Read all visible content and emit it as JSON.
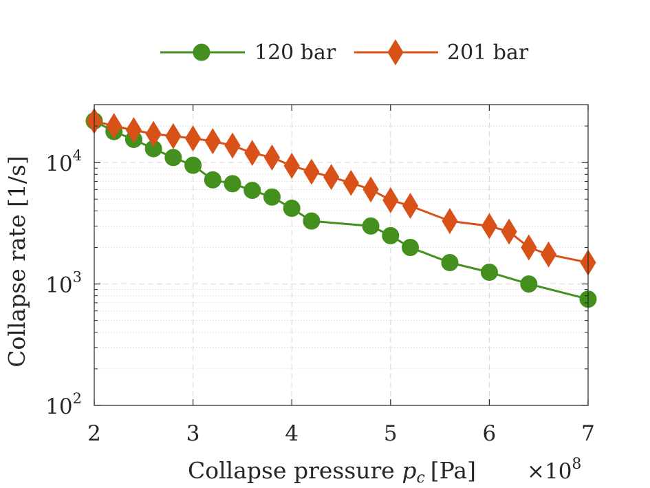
{
  "chart_data": {
    "type": "line",
    "title": "",
    "xlabel": "Collapse pressure",
    "xlabel_symbol": "p",
    "xlabel_subscript": "c",
    "xlabel_unit": "[Pa]",
    "x_multiplier_base": "×10",
    "x_multiplier_exp": "8",
    "ylabel": "Collapse rate  [1/s]",
    "yscale": "log",
    "xlim": [
      2,
      7
    ],
    "ylim": [
      100,
      30000
    ],
    "xticks": [
      2,
      3,
      4,
      5,
      6,
      7
    ],
    "xtick_labels": [
      "2",
      "3",
      "4",
      "5",
      "6",
      "7"
    ],
    "yticks": [
      100,
      1000,
      10000
    ],
    "ytick_labels": [
      {
        "base": "10",
        "exp": "2"
      },
      {
        "base": "10",
        "exp": "3"
      },
      {
        "base": "10",
        "exp": "4"
      }
    ],
    "grid": true,
    "legend_position": "top-center-outside",
    "series": [
      {
        "name": "120 bar",
        "color": "#43901e",
        "marker": "circle",
        "x": [
          2.0,
          2.2,
          2.4,
          2.6,
          2.8,
          3.0,
          3.2,
          3.4,
          3.6,
          3.8,
          4.0,
          4.2,
          4.8,
          5.0,
          5.2,
          5.6,
          6.0,
          6.4,
          7.0
        ],
        "values": [
          22000,
          18000,
          15500,
          13000,
          11000,
          9500,
          7200,
          6700,
          5900,
          5200,
          4200,
          3300,
          3000,
          2500,
          2000,
          1500,
          1250,
          1000,
          750
        ]
      },
      {
        "name": "201 bar",
        "color": "#d85118",
        "marker": "diamond",
        "x": [
          2.0,
          2.2,
          2.4,
          2.6,
          2.8,
          3.0,
          3.2,
          3.4,
          3.6,
          3.8,
          4.0,
          4.2,
          4.4,
          4.6,
          4.8,
          5.0,
          5.2,
          5.6,
          6.0,
          6.2,
          6.4,
          6.6,
          7.0
        ],
        "values": [
          22000,
          20000,
          18500,
          17200,
          16500,
          15800,
          15000,
          13800,
          12000,
          11000,
          9400,
          8400,
          7600,
          6800,
          6000,
          4900,
          4400,
          3300,
          3000,
          2700,
          2000,
          1750,
          1500
        ]
      }
    ]
  }
}
